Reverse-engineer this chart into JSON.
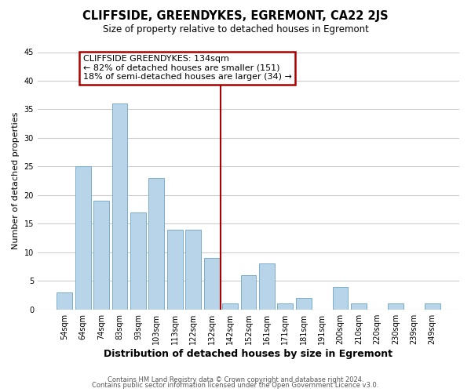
{
  "title": "CLIFFSIDE, GREENDYKES, EGREMONT, CA22 2JS",
  "subtitle": "Size of property relative to detached houses in Egremont",
  "xlabel": "Distribution of detached houses by size in Egremont",
  "ylabel": "Number of detached properties",
  "categories": [
    "54sqm",
    "64sqm",
    "74sqm",
    "83sqm",
    "93sqm",
    "103sqm",
    "113sqm",
    "122sqm",
    "132sqm",
    "142sqm",
    "152sqm",
    "161sqm",
    "171sqm",
    "181sqm",
    "191sqm",
    "200sqm",
    "210sqm",
    "220sqm",
    "230sqm",
    "239sqm",
    "249sqm"
  ],
  "values": [
    3,
    25,
    19,
    36,
    17,
    23,
    14,
    14,
    9,
    1,
    6,
    8,
    1,
    2,
    0,
    4,
    1,
    0,
    1,
    0,
    1
  ],
  "bar_color": "#b8d4e8",
  "bar_edge_color": "#7aaecc",
  "grid_color": "#cccccc",
  "vline_color": "#aa0000",
  "annotation_title": "CLIFFSIDE GREENDYKES: 134sqm",
  "annotation_line1": "← 82% of detached houses are smaller (151)",
  "annotation_line2": "18% of semi-detached houses are larger (34) →",
  "annotation_box_color": "#ffffff",
  "annotation_box_edge_color": "#aa0000",
  "ylim": [
    0,
    45
  ],
  "yticks": [
    0,
    5,
    10,
    15,
    20,
    25,
    30,
    35,
    40,
    45
  ],
  "footer_line1": "Contains HM Land Registry data © Crown copyright and database right 2024.",
  "footer_line2": "Contains public sector information licensed under the Open Government Licence v3.0.",
  "background_color": "#ffffff"
}
